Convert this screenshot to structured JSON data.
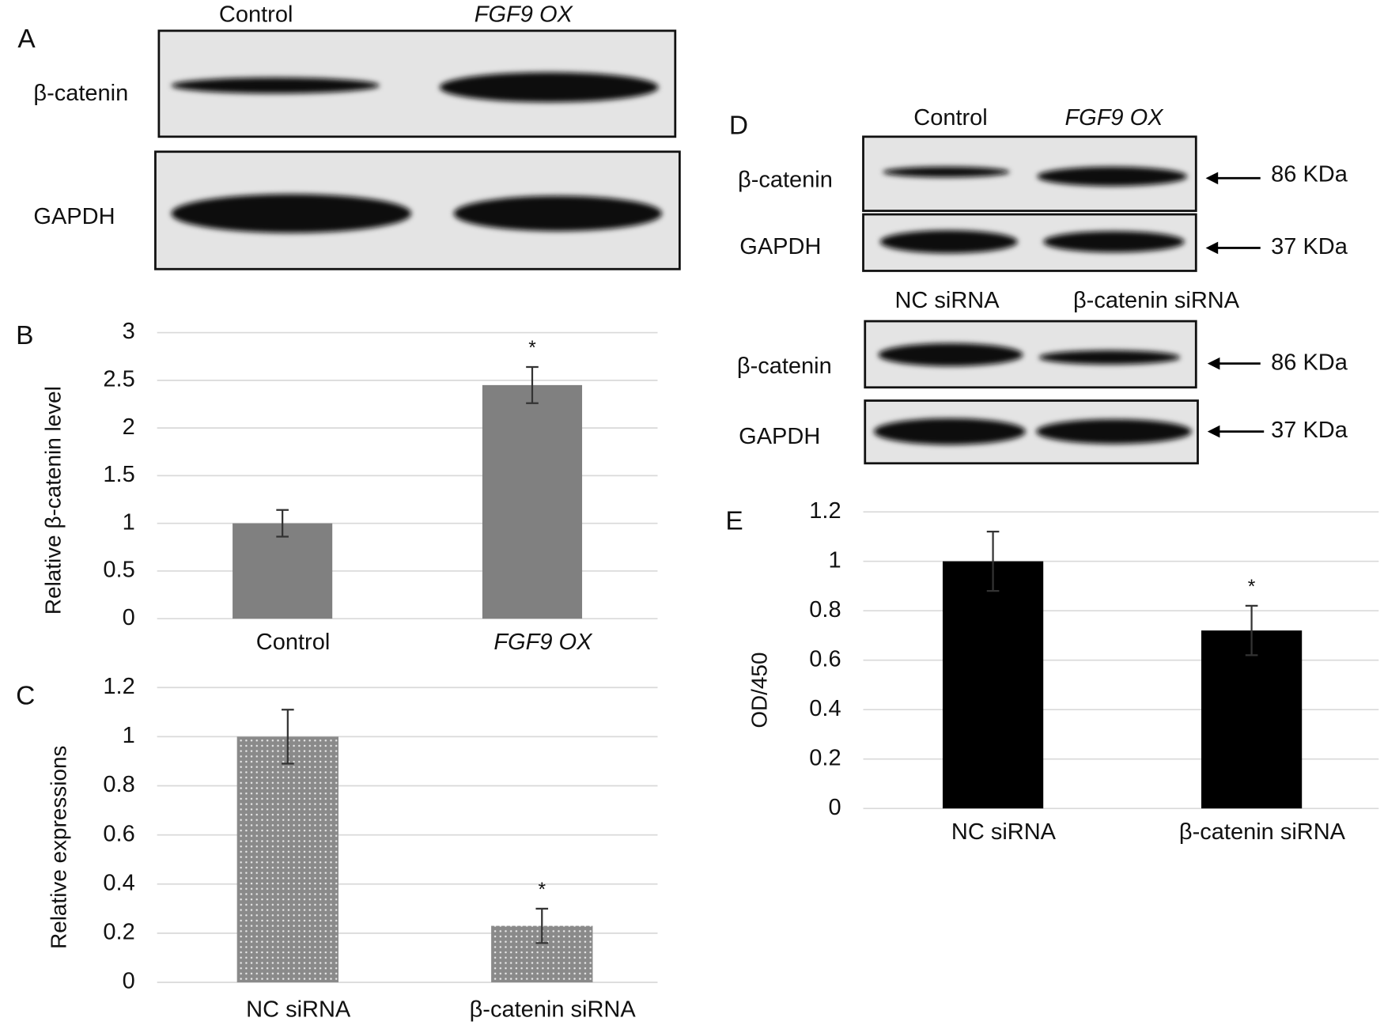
{
  "blots": [
    {
      "panel": "A",
      "lanes": [
        "Control",
        "FGF9 OX"
      ],
      "rows": [
        {
          "label": "β-catenin"
        },
        {
          "label": "GAPDH"
        }
      ]
    },
    {
      "panel": "D",
      "lanes": [
        "Control",
        "FGF9 OX"
      ],
      "rows": [
        {
          "label": "β-catenin",
          "size": "86 KDa"
        },
        {
          "label": "GAPDH",
          "size": "37 KDa"
        }
      ]
    },
    {
      "lanes": [
        "NC  siRNA",
        "β-catenin  siRNA"
      ],
      "rows": [
        {
          "label": "β-catenin",
          "size": "86 KDa"
        },
        {
          "label": "GAPDH",
          "size": "37 KDa"
        }
      ]
    }
  ],
  "chart_data": [
    {
      "type": "bar",
      "panel": "B",
      "y_label": "Relative  β-catenin level",
      "categories": [
        "Control",
        "FGF9 OX"
      ],
      "category_styles": [
        "normal",
        "italic"
      ],
      "values": [
        1,
        2.45
      ],
      "errors": [
        0.14,
        0.19
      ],
      "significance": [
        null,
        "*"
      ],
      "color": "#808080",
      "ylim": [
        0,
        3
      ],
      "yticks": [
        0,
        0.5,
        1,
        1.5,
        2,
        2.5,
        3
      ],
      "grid": true
    },
    {
      "type": "bar",
      "panel": "C",
      "y_label": "Relative  expressions",
      "categories": [
        "NC  siRNA",
        "β-catenin  siRNA"
      ],
      "category_styles": [
        "normal",
        "normal"
      ],
      "values": [
        1,
        0.23
      ],
      "errors": [
        0.11,
        0.07
      ],
      "significance": [
        null,
        "*"
      ],
      "color": "#8a8a8a",
      "fill_pattern": "dots",
      "ylim": [
        0,
        1.2
      ],
      "yticks": [
        0,
        0.2,
        0.4,
        0.6,
        0.8,
        1,
        1.2
      ],
      "grid": true
    },
    {
      "type": "bar",
      "panel": "E",
      "y_label": "OD/450",
      "categories": [
        "NC  siRNA",
        "β-catenin  siRNA"
      ],
      "category_styles": [
        "normal",
        "normal"
      ],
      "values": [
        1,
        0.72
      ],
      "errors": [
        0.12,
        0.1
      ],
      "significance": [
        null,
        "*"
      ],
      "color": "#000000",
      "ylim": [
        0,
        1.2
      ],
      "yticks": [
        0,
        0.2,
        0.4,
        0.6,
        0.8,
        1,
        1.2
      ],
      "grid": true
    }
  ]
}
